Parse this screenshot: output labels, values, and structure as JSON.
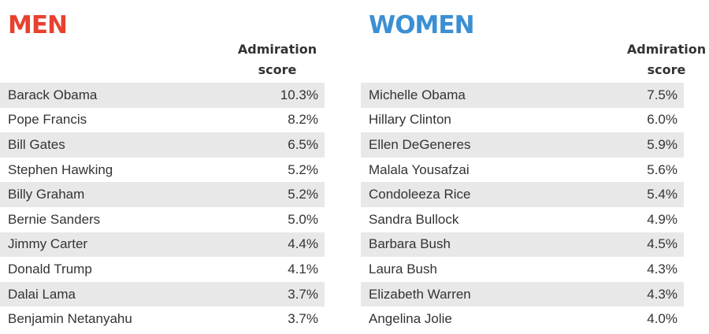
{
  "chart_data": [
    {
      "type": "table",
      "title": "MEN",
      "column_header": "Admiration score",
      "column_header_lines": [
        "Admiration",
        "score"
      ],
      "accent_color": "#e8412f",
      "rows": [
        {
          "name": "Barack Obama",
          "score": "10.3%"
        },
        {
          "name": "Pope Francis",
          "score": "8.2%"
        },
        {
          "name": "Bill Gates",
          "score": "6.5%"
        },
        {
          "name": "Stephen Hawking",
          "score": "5.2%"
        },
        {
          "name": "Billy Graham",
          "score": "5.2%"
        },
        {
          "name": "Bernie Sanders",
          "score": "5.0%"
        },
        {
          "name": "Jimmy Carter",
          "score": "4.4%"
        },
        {
          "name": "Donald Trump",
          "score": "4.1%"
        },
        {
          "name": "Dalai Lama",
          "score": "3.7%"
        },
        {
          "name": "Benjamin Netanyahu",
          "score": "3.7%"
        }
      ]
    },
    {
      "type": "table",
      "title": "WOMEN",
      "column_header": "Admiration score",
      "column_header_lines": [
        "Admiration",
        "score"
      ],
      "accent_color": "#3b8fd3",
      "rows": [
        {
          "name": "Michelle Obama",
          "score": "7.5%"
        },
        {
          "name": "Hillary Clinton",
          "score": "6.0%"
        },
        {
          "name": "Ellen DeGeneres",
          "score": "5.9%"
        },
        {
          "name": "Malala Yousafzai",
          "score": "5.6%"
        },
        {
          "name": "Condoleeza Rice",
          "score": "5.4%"
        },
        {
          "name": "Sandra Bullock",
          "score": "4.9%"
        },
        {
          "name": "Barbara Bush",
          "score": "4.5%"
        },
        {
          "name": "Laura Bush",
          "score": "4.3%"
        },
        {
          "name": "Elizabeth Warren",
          "score": "4.3%"
        },
        {
          "name": "Angelina Jolie",
          "score": "4.0%"
        }
      ]
    }
  ]
}
